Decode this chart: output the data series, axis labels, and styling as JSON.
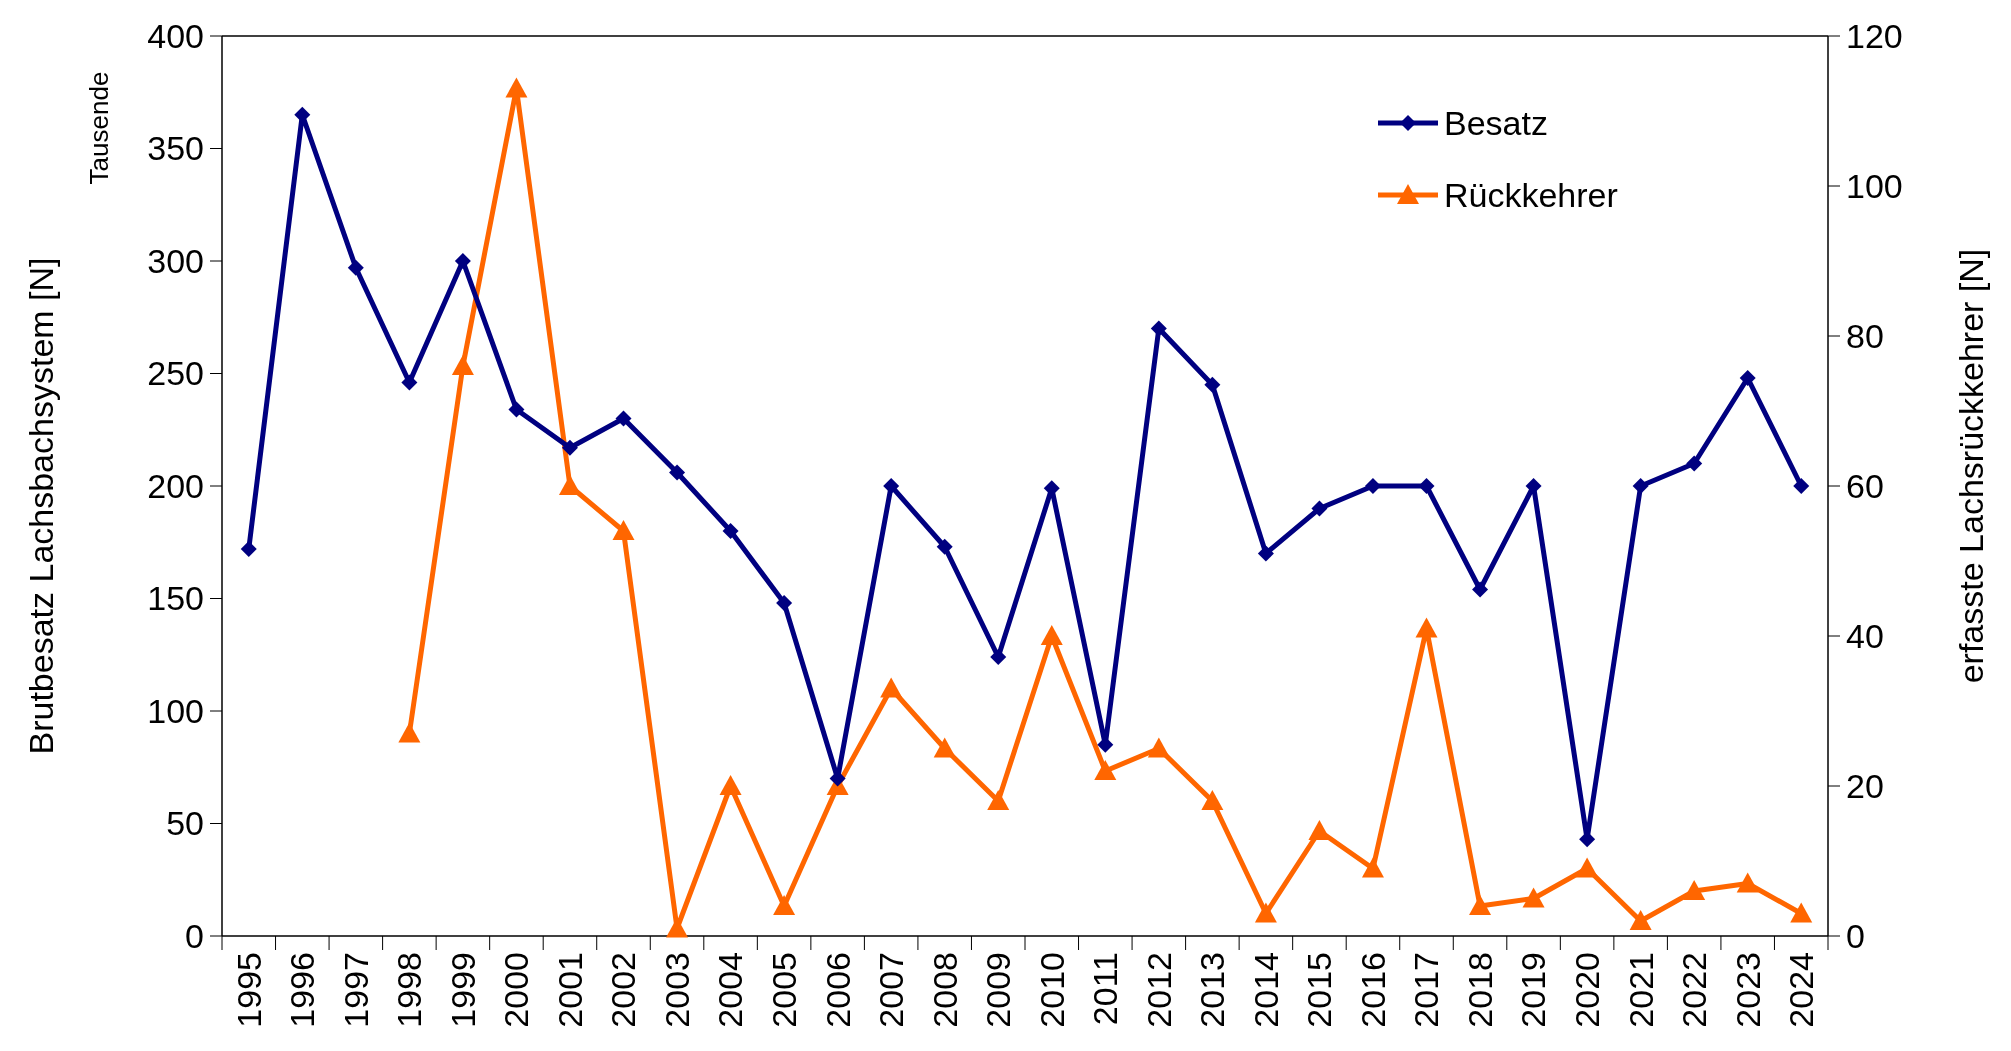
{
  "chart_data": {
    "type": "line",
    "ylabel": "Brutbesatz Lachsbachsystem [N]",
    "y2label": "erfasste Lachsrückkehrer [N]",
    "annotations": [
      "Tausende"
    ],
    "categories": [
      "1995",
      "1996",
      "1997",
      "1998",
      "1999",
      "2000",
      "2001",
      "2002",
      "2003",
      "2004",
      "2005",
      "2006",
      "2007",
      "2008",
      "2009",
      "2010",
      "2011",
      "2012",
      "2013",
      "2014",
      "2015",
      "2016",
      "2017",
      "2018",
      "2019",
      "2020",
      "2021",
      "2022",
      "2023",
      "2024"
    ],
    "series": [
      {
        "name": "Besatz",
        "color": "#000080",
        "marker": "diamond",
        "values": [
          172,
          365,
          297,
          246,
          300,
          234,
          217,
          230,
          206,
          180,
          148,
          70,
          200,
          173,
          124,
          199,
          85,
          270,
          245,
          170,
          190,
          200,
          200,
          154,
          200,
          43,
          200,
          210,
          248,
          200
        ]
      },
      {
        "name": "Rückkehrer",
        "color": "#ff6600",
        "marker": "triangle",
        "axis": "y2",
        "values": [
          null,
          null,
          null,
          27,
          76,
          113,
          60,
          54,
          1,
          20,
          4,
          20,
          33,
          25,
          18,
          40,
          22,
          25,
          18,
          3,
          14,
          9,
          41,
          4,
          5,
          9,
          2,
          6,
          7,
          3
        ]
      }
    ],
    "ylim": [
      0,
      400
    ],
    "yticks": [
      0,
      50,
      100,
      150,
      200,
      250,
      300,
      350,
      400
    ],
    "y2lim": [
      0,
      120
    ],
    "y2ticks": [
      0,
      20,
      40,
      60,
      80,
      100,
      120
    ],
    "grid": false,
    "legend": "top right"
  }
}
